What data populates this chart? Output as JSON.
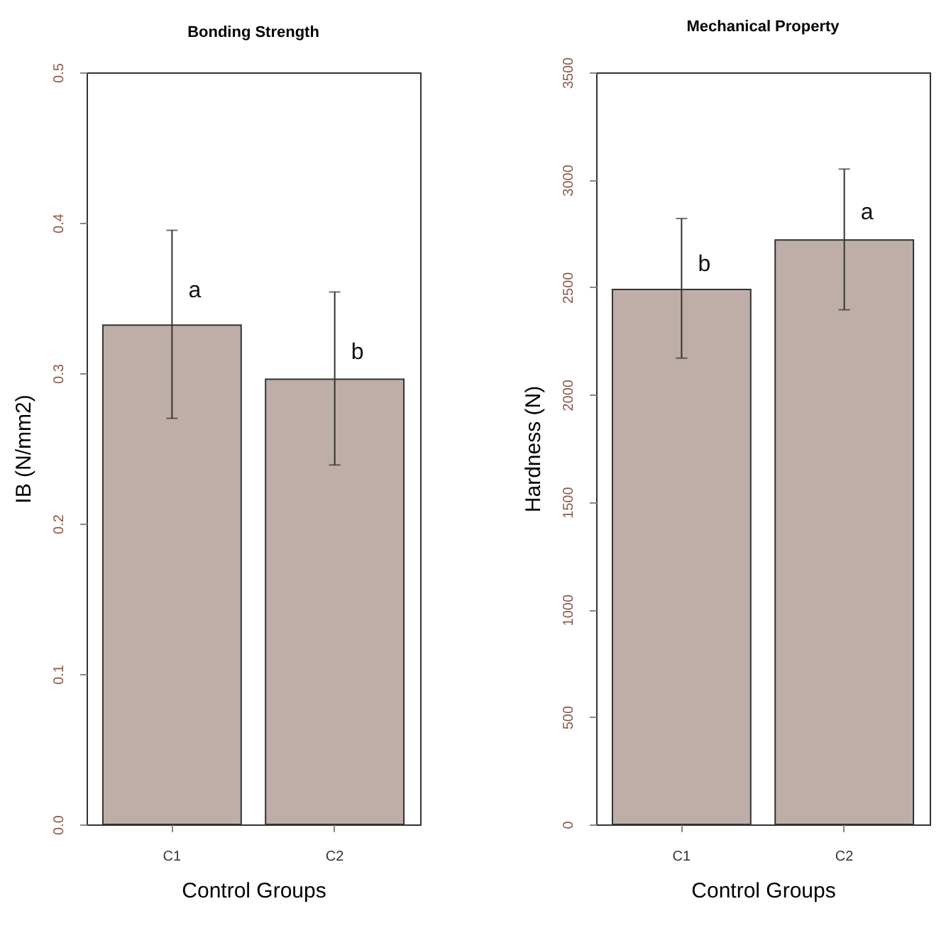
{
  "chart_data": [
    {
      "type": "bar",
      "title": "Bonding Strength",
      "xlabel": "Control Groups",
      "ylabel": "IB (N/mm2)",
      "categories": [
        "C1",
        "C2"
      ],
      "values": [
        0.332,
        0.296
      ],
      "errors": [
        [
          0.27,
          0.395
        ],
        [
          0.239,
          0.354
        ]
      ],
      "color": "#bfaea8",
      "ylim": [
        0,
        0.5
      ],
      "yticks": [
        {
          "value": 0,
          "label": "0.0"
        },
        0.1,
        0.2,
        0.3,
        0.4,
        0.5
      ],
      "annotations": [
        {
          "text": "a",
          "x": "C1",
          "y": 0.355
        },
        {
          "text": "b",
          "x": "C2",
          "y": 0.314
        }
      ]
    },
    {
      "type": "bar",
      "title": "Mechanical Property",
      "xlabel": "Control Groups",
      "ylabel": "Hardness (N)",
      "categories": [
        "C1",
        "C2"
      ],
      "values": [
        2490,
        2720
      ],
      "errors": [
        [
          2170,
          2820
        ],
        [
          2395,
          3050
        ]
      ],
      "color": "#bfaea8",
      "ylim": [
        0,
        3500
      ],
      "yticks": [
        0,
        500,
        1000,
        1500,
        2000,
        2500,
        3000,
        3500
      ],
      "annotations": [
        {
          "text": "b",
          "x": "C1",
          "y": 2610
        },
        {
          "text": "a",
          "x": "C2",
          "y": 2850
        }
      ]
    }
  ]
}
